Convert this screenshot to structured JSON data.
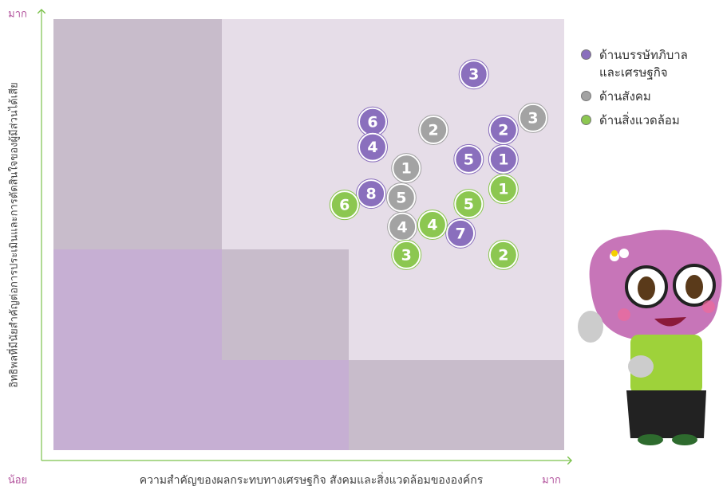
{
  "chart_data": {
    "type": "scatter",
    "x_label": "ความสำคัญของผลกระทบทางเศรษฐกิจ สังคมและสิ่งแวดล้อมขององค์กร",
    "y_label": "อิทธิพลที่มีนัยสำคัญต่อการประเมินและการตัดสินใจของผู้มีส่วนได้เสีย",
    "xlim": [
      0,
      100
    ],
    "ylim": [
      0,
      100
    ],
    "xticks": [
      {
        "value": 0,
        "label": "น้อย"
      },
      {
        "value": 100,
        "label": "มาก"
      }
    ],
    "yticks": [
      {
        "value": 100,
        "label": "มาก"
      }
    ],
    "series": [
      {
        "name": "ด้านบรรษัทภิบาลและเศรษฐกิจ",
        "color": "#8a6fbd",
        "labels": [
          "3",
          "6",
          "4",
          "2",
          "5",
          "1",
          "8",
          "7"
        ],
        "x": [
          82.3,
          62.5,
          62.5,
          88.1,
          81.3,
          88.1,
          62.2,
          79.7
        ],
        "values": [
          87.2,
          76.2,
          70.3,
          74.3,
          67.5,
          67.5,
          59.5,
          50.3
        ]
      },
      {
        "name": "ด้านสังคม",
        "color": "#a3a3a3",
        "labels": [
          "2",
          "3",
          "1",
          "5",
          "4"
        ],
        "x": [
          74.4,
          93.9,
          69.1,
          68.1,
          68.3
        ],
        "values": [
          74.3,
          77.1,
          65.4,
          58.6,
          51.8
        ]
      },
      {
        "name": "ด้านสิ่งแวดล้อม",
        "color": "#8cc751",
        "labels": [
          "1",
          "6",
          "5",
          "4",
          "3",
          "2"
        ],
        "x": [
          88.1,
          57.0,
          81.3,
          74.2,
          69.1,
          88.1
        ],
        "values": [
          60.6,
          56.9,
          57.1,
          52.3,
          45.3,
          45.3
        ]
      }
    ]
  }
}
